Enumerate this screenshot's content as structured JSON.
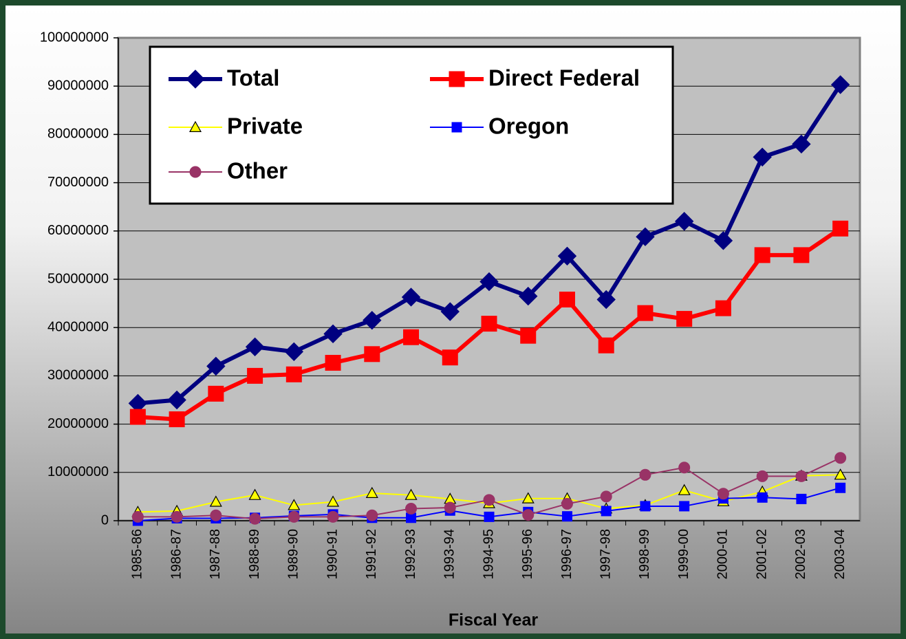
{
  "chart_data": {
    "type": "line",
    "x_label": "Fiscal Year",
    "categories": [
      "1985-86",
      "1986-87",
      "1987-88",
      "1988-89",
      "1989-90",
      "1990-91",
      "1991-92",
      "1992-93",
      "1993-94",
      "1994-95",
      "1995-96",
      "1996-97",
      "1997-98",
      "1998-99",
      "1999-00",
      "2000-01",
      "2001-02",
      "2002-03",
      "2003-04"
    ],
    "series": [
      {
        "name": "Total",
        "color": "#000080",
        "marker": "diamond",
        "values": [
          24300000,
          25000000,
          32000000,
          36000000,
          35000000,
          38700000,
          41500000,
          46300000,
          43300000,
          49500000,
          46500000,
          54800000,
          45800000,
          58800000,
          62000000,
          58000000,
          75300000,
          78000000,
          90300000
        ]
      },
      {
        "name": "Direct Federal",
        "color": "#ff0000",
        "marker": "square",
        "values": [
          21500000,
          21000000,
          26300000,
          30000000,
          30300000,
          32700000,
          34500000,
          38000000,
          33800000,
          40800000,
          38300000,
          45800000,
          36300000,
          43000000,
          41800000,
          44000000,
          55000000,
          55000000,
          60500000
        ]
      },
      {
        "name": "Private",
        "color": "#ffff00",
        "marker": "triangle",
        "values": [
          1800000,
          2000000,
          3900000,
          5300000,
          3200000,
          3900000,
          5700000,
          5300000,
          4500000,
          3600000,
          4600000,
          4600000,
          2500000,
          3200000,
          6300000,
          4000000,
          6000000,
          9300000,
          9500000
        ]
      },
      {
        "name": "Oregon",
        "color": "#0000ff",
        "marker": "square",
        "values": [
          0,
          500000,
          500000,
          600000,
          1000000,
          1300000,
          600000,
          600000,
          2100000,
          800000,
          1800000,
          900000,
          2000000,
          3000000,
          3000000,
          4600000,
          4800000,
          4500000,
          6800000
        ]
      },
      {
        "name": "Other",
        "color": "#993366",
        "marker": "circle",
        "values": [
          800000,
          800000,
          1100000,
          400000,
          800000,
          800000,
          1100000,
          2500000,
          2700000,
          4300000,
          1200000,
          3500000,
          5000000,
          9500000,
          11000000,
          5600000,
          9200000,
          9200000,
          13000000
        ]
      }
    ],
    "ylim": [
      0,
      100000000
    ],
    "yticks": [
      0,
      10000000,
      20000000,
      30000000,
      40000000,
      50000000,
      60000000,
      70000000,
      80000000,
      90000000,
      100000000
    ],
    "grid": true,
    "legend": "upper left"
  }
}
